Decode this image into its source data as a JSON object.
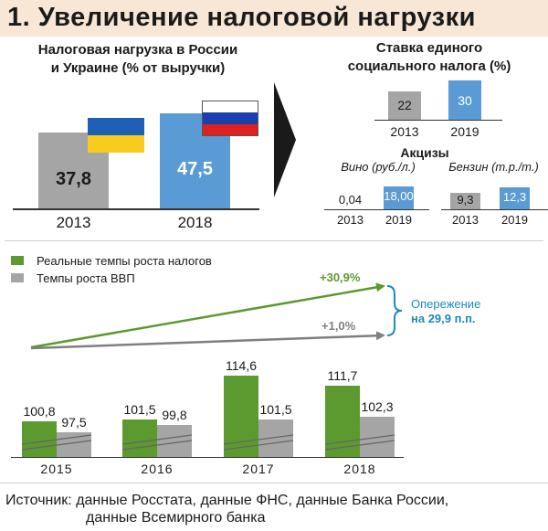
{
  "title": "1. Увеличение налоговой нагрузки",
  "colors": {
    "gray": "#a5a5a5",
    "blue": "#5b9bd5",
    "green": "#5c9a2f",
    "title_bg": "#f8e6d6",
    "accent": "#1f8ab8"
  },
  "chart_data": [
    {
      "type": "bar",
      "title": "Налоговая нагрузка в России и Украине (% от выручки)",
      "title_lines": [
        "Налоговая нагрузка в России",
        "и Украине (% от выручки)"
      ],
      "categories": [
        "2013",
        "2018"
      ],
      "values": [
        37.8,
        47.5
      ],
      "value_labels": [
        "37,8",
        "47,5"
      ],
      "flags": [
        "ukraine-flag",
        "russia-flag"
      ],
      "ylim": [
        0,
        60
      ]
    },
    {
      "type": "bar",
      "title": "Ставка единого социального налога (%)",
      "title_lines": [
        "Ставка единого",
        "социального налога (%)"
      ],
      "categories": [
        "2013",
        "2019"
      ],
      "values": [
        22,
        30
      ],
      "value_labels": [
        "22",
        "30"
      ],
      "ylim": [
        0,
        35
      ]
    },
    {
      "type": "bar",
      "title": "Акцизы",
      "groups": [
        {
          "name": "Вино (руб./л.)",
          "categories": [
            "2013",
            "2019"
          ],
          "values": [
            0.04,
            18.0
          ],
          "value_labels": [
            "0,04",
            "18,00"
          ]
        },
        {
          "name": "Бензин (т.р./т.)",
          "categories": [
            "2013",
            "2019"
          ],
          "values": [
            9.3,
            12.3
          ],
          "value_labels": [
            "9,3",
            "12,3"
          ]
        }
      ]
    },
    {
      "type": "bar",
      "legend": [
        "Реальные темпы роста налогов",
        "Темпы роста ВВП"
      ],
      "legend_position": "top-left",
      "categories": [
        "2015",
        "2016",
        "2017",
        "2018"
      ],
      "series": [
        {
          "name": "Реальные темпы роста налогов",
          "values": [
            100.8,
            101.5,
            114.6,
            111.7
          ],
          "labels": [
            "100,8",
            "101,5",
            "114,6",
            "111,7"
          ]
        },
        {
          "name": "Темпы роста ВВП",
          "values": [
            97.5,
            99.8,
            101.5,
            102.3
          ],
          "labels": [
            "97,5",
            "99,8",
            "101,5",
            "102,3"
          ]
        }
      ],
      "ylim": [
        90,
        120
      ],
      "axis_break": true,
      "trend": {
        "taxes_label": "+30,9%",
        "gdp_label": "+1,0%"
      },
      "annotation": [
        "Опережение",
        "на 29,9 п.п."
      ]
    }
  ],
  "source": [
    "Источник: данные Росстата, данные ФНС, данные Банка России,",
    "данные Всемирного банка"
  ]
}
